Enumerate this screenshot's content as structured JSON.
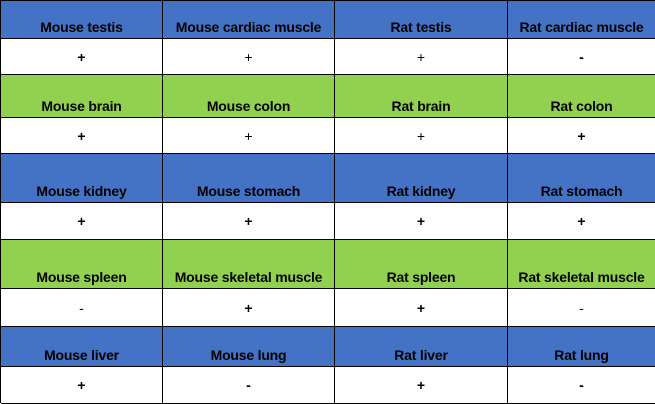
{
  "colors": {
    "blue_band": "#4472c4",
    "green_band": "#92d050",
    "value_row": "#ffffff"
  },
  "rows": [
    {
      "band": "blue",
      "headers": [
        "Mouse testis",
        "Mouse cardiac muscle",
        "Rat testis",
        "Rat cardiac muscle"
      ],
      "values": [
        "+",
        "+",
        "+",
        "-"
      ]
    },
    {
      "band": "green",
      "headers": [
        "Mouse brain",
        "Mouse colon",
        "Rat brain",
        "Rat colon"
      ],
      "values": [
        "+",
        "+",
        "+",
        "+"
      ]
    },
    {
      "band": "blue",
      "headers": [
        "Mouse kidney",
        "Mouse stomach",
        "Rat kidney",
        "Rat stomach"
      ],
      "values": [
        "+",
        "+",
        "+",
        "+"
      ]
    },
    {
      "band": "green",
      "headers": [
        "Mouse spleen",
        "Mouse skeletal muscle",
        "Rat spleen",
        "Rat skeletal muscle"
      ],
      "values": [
        "-",
        "+",
        "+",
        "-"
      ]
    },
    {
      "band": "blue",
      "headers": [
        "Mouse liver",
        "Mouse lung",
        "Rat liver",
        "Rat lung"
      ],
      "values": [
        "+",
        "-",
        "+",
        "-"
      ]
    }
  ]
}
